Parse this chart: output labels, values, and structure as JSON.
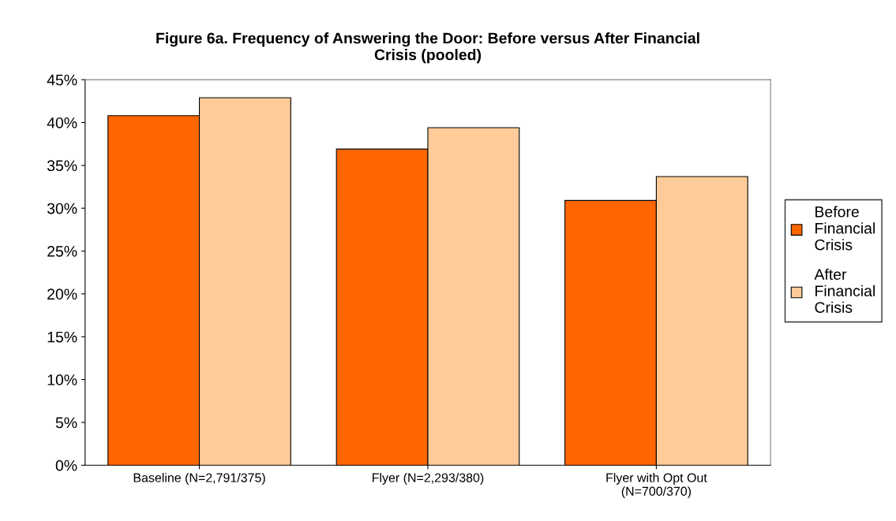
{
  "chart_data": {
    "type": "bar",
    "title": "Figure 6a. Frequency of Answering the Door: Before versus After Financial\nCrisis (pooled)",
    "categories": [
      "Baseline (N=2,791/375)",
      "Flyer (N=2,293/380)",
      "Flyer with Opt Out\n(N=700/370)"
    ],
    "series": [
      {
        "name": "Before Financial Crisis",
        "color": "#ff6600",
        "values": [
          40.8,
          36.9,
          30.9
        ]
      },
      {
        "name": "After Financial Crisis",
        "color": "#ffcc99",
        "values": [
          42.9,
          39.4,
          33.7
        ]
      }
    ],
    "ylim": [
      0,
      45
    ],
    "yticks": [
      {
        "value": 0,
        "label": "0%"
      },
      {
        "value": 5,
        "label": "5%"
      },
      {
        "value": 10,
        "label": "10%"
      },
      {
        "value": 15,
        "label": "15%"
      },
      {
        "value": 20,
        "label": "20%"
      },
      {
        "value": 25,
        "label": "25%"
      },
      {
        "value": 30,
        "label": "30%"
      },
      {
        "value": 35,
        "label": "35%"
      },
      {
        "value": 40,
        "label": "40%"
      },
      {
        "value": 45,
        "label": "45%"
      }
    ],
    "grid": false,
    "legend": "right"
  }
}
